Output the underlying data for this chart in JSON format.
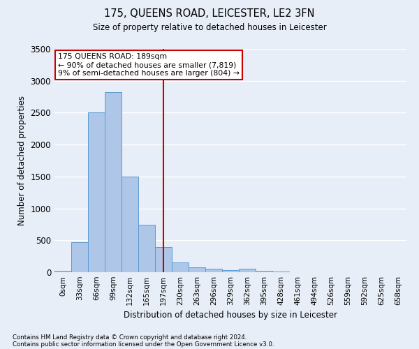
{
  "title": "175, QUEENS ROAD, LEICESTER, LE2 3FN",
  "subtitle": "Size of property relative to detached houses in Leicester",
  "xlabel": "Distribution of detached houses by size in Leicester",
  "ylabel": "Number of detached properties",
  "bar_labels": [
    "0sqm",
    "33sqm",
    "66sqm",
    "99sqm",
    "132sqm",
    "165sqm",
    "197sqm",
    "230sqm",
    "263sqm",
    "296sqm",
    "329sqm",
    "362sqm",
    "395sqm",
    "428sqm",
    "461sqm",
    "494sqm",
    "526sqm",
    "559sqm",
    "592sqm",
    "625sqm",
    "658sqm"
  ],
  "bar_values": [
    20,
    470,
    2500,
    2820,
    1500,
    740,
    390,
    150,
    75,
    50,
    35,
    50,
    20,
    10,
    5,
    3,
    2,
    1,
    1,
    1,
    0
  ],
  "bar_color": "#aec6e8",
  "bar_edge_color": "#5b9bd5",
  "fig_bg_color": "#e8eef7",
  "axes_bg_color": "#e8eef7",
  "grid_color": "#ffffff",
  "vline_x_index": 6,
  "vline_color": "#cc0000",
  "annotation_line1": "175 QUEENS ROAD: 189sqm",
  "annotation_line2": "← 90% of detached houses are smaller (7,819)",
  "annotation_line3": "9% of semi-detached houses are larger (804) →",
  "annotation_box_color": "#ffffff",
  "annotation_box_edge": "#cc0000",
  "ylim": [
    0,
    3500
  ],
  "yticks": [
    0,
    500,
    1000,
    1500,
    2000,
    2500,
    3000,
    3500
  ],
  "footnote1": "Contains HM Land Registry data © Crown copyright and database right 2024.",
  "footnote2": "Contains public sector information licensed under the Open Government Licence v3.0."
}
